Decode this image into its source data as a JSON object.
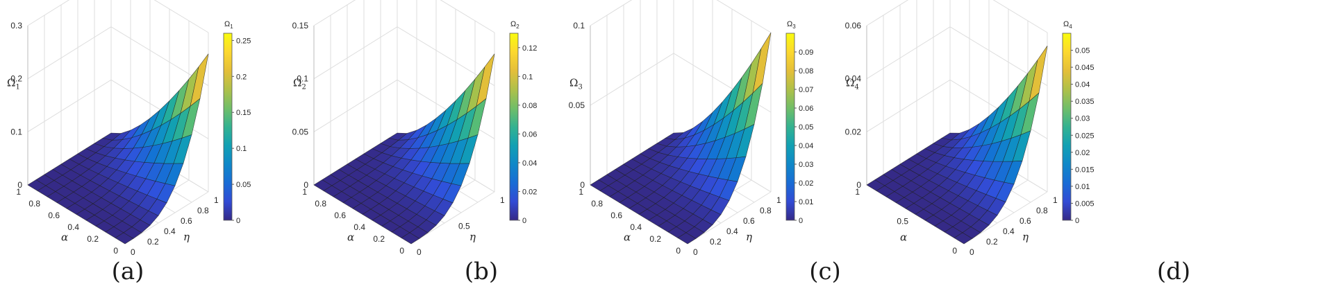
{
  "chart_data": [
    {
      "type": "surface3d",
      "panel_label": "(a)",
      "zlabel": "Ω",
      "zsub": "1",
      "colorbar_title": "Ω",
      "colorbar_sub": "1",
      "xlabel": "α",
      "ylabel": "η",
      "x_ticks": [
        "0",
        "0.2",
        "0.4",
        "0.6",
        "0.8",
        "1"
      ],
      "y_ticks": [
        "0",
        "0.2",
        "0.4",
        "0.6",
        "0.8",
        "1"
      ],
      "z_ticks": [
        "0",
        "0.1",
        "0.2",
        "0.3"
      ],
      "zlim": [
        0,
        0.3
      ],
      "cmax": 0.26,
      "colorbar_ticks": [
        "0",
        "0.05",
        "0.1",
        "0.15",
        "0.2",
        "0.25"
      ],
      "colorbar_values": [
        0,
        0.05,
        0.1,
        0.15,
        0.2,
        0.25
      ],
      "surface_peak": 0.26
    },
    {
      "type": "surface3d",
      "panel_label": "(b)",
      "zlabel": "Ω",
      "zsub": "2",
      "colorbar_title": "Ω",
      "colorbar_sub": "2",
      "xlabel": "α",
      "ylabel": "η",
      "x_ticks": [
        "0",
        "0.2",
        "0.4",
        "0.6",
        "0.8",
        "1"
      ],
      "y_ticks": [
        "0",
        "0.5",
        "1"
      ],
      "z_ticks": [
        "0",
        "0.05",
        "0.1",
        "0.15"
      ],
      "zlim": [
        0,
        0.15
      ],
      "cmax": 0.13,
      "colorbar_ticks": [
        "0",
        "0.02",
        "0.04",
        "0.06",
        "0.08",
        "0.1",
        "0.12"
      ],
      "colorbar_values": [
        0,
        0.02,
        0.04,
        0.06,
        0.08,
        0.1,
        0.12
      ],
      "surface_peak": 0.13
    },
    {
      "type": "surface3d",
      "panel_label": "(c)",
      "zlabel": "Ω",
      "zsub": "3",
      "colorbar_title": "Ω",
      "colorbar_sub": "3",
      "xlabel": "α",
      "ylabel": "η",
      "x_ticks": [
        "0",
        "0.2",
        "0.4",
        "0.6",
        "0.8",
        "1"
      ],
      "y_ticks": [
        "0",
        "0.2",
        "0.4",
        "0.6",
        "0.8",
        "1"
      ],
      "z_ticks": [
        "0",
        "0.05",
        "0.1"
      ],
      "zlim": [
        0,
        0.1
      ],
      "cmax": 0.1,
      "colorbar_ticks": [
        "0",
        "0.01",
        "0.02",
        "0.03",
        "0.04",
        "0.05",
        "0.06",
        "0.07",
        "0.08",
        "0.09"
      ],
      "colorbar_values": [
        0,
        0.01,
        0.02,
        0.03,
        0.04,
        0.05,
        0.06,
        0.07,
        0.08,
        0.09
      ],
      "surface_peak": 0.1
    },
    {
      "type": "surface3d",
      "panel_label": "(d)",
      "zlabel": "Ω",
      "zsub": "4",
      "colorbar_title": "Ω",
      "colorbar_sub": "4",
      "xlabel": "α",
      "ylabel": "η",
      "x_ticks": [
        "0",
        "0.5",
        "1"
      ],
      "y_ticks": [
        "0",
        "0.2",
        "0.4",
        "0.6",
        "0.8",
        "1"
      ],
      "z_ticks": [
        "0",
        "0.02",
        "0.04",
        "0.06"
      ],
      "zlim": [
        0,
        0.06
      ],
      "cmax": 0.055,
      "colorbar_ticks": [
        "0",
        "0.005",
        "0.01",
        "0.015",
        "0.02",
        "0.025",
        "0.03",
        "0.035",
        "0.04",
        "0.045",
        "0.05"
      ],
      "colorbar_values": [
        0,
        0.005,
        0.01,
        0.015,
        0.02,
        0.025,
        0.03,
        0.035,
        0.04,
        0.045,
        0.05
      ],
      "surface_peak": 0.055
    }
  ]
}
